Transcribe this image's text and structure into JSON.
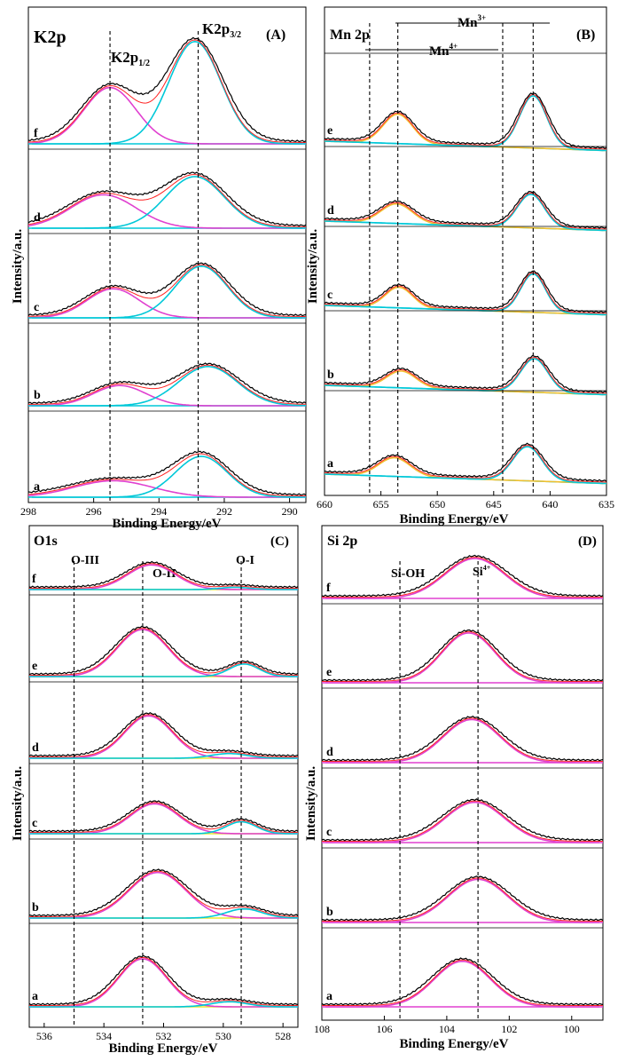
{
  "chart_data": [
    {
      "type": "line",
      "panel_tag": "(A)",
      "title": "K2p",
      "xlabel": "Binding Energy/eV",
      "ylabel": "Intensity/a.u.",
      "xlim": [
        298,
        289.5
      ],
      "xticks": [
        298,
        296,
        294,
        292,
        290
      ],
      "tick_labels": [
        "298",
        "296",
        "294",
        "292",
        "290"
      ],
      "row_labels": [
        "f",
        "d",
        "c",
        "b",
        "a"
      ],
      "annotations": [
        {
          "base": "K2p",
          "sub": "1/2",
          "pos": "top-left"
        },
        {
          "base": "K2p",
          "sub": "3/2",
          "pos": "top-center"
        }
      ],
      "reference_lines": [
        295.5,
        292.8
      ],
      "row_peaks": [
        [
          {
            "c": 295.5,
            "h": 0.55,
            "w": 0.8
          },
          {
            "c": 292.9,
            "h": 1.0,
            "w": 0.8
          }
        ],
        [
          {
            "c": 295.7,
            "h": 0.55,
            "w": 1.0
          },
          {
            "c": 292.9,
            "h": 0.85,
            "w": 0.9
          }
        ],
        [
          {
            "c": 295.4,
            "h": 0.45,
            "w": 0.8
          },
          {
            "c": 292.7,
            "h": 0.8,
            "w": 0.8
          }
        ],
        [
          {
            "c": 295.2,
            "h": 0.32,
            "w": 0.8
          },
          {
            "c": 292.5,
            "h": 0.62,
            "w": 0.9
          }
        ],
        [
          {
            "c": 295.4,
            "h": 0.25,
            "w": 1.2
          },
          {
            "c": 292.7,
            "h": 0.62,
            "w": 0.8
          }
        ]
      ],
      "component_colors": [
        "#e040d0",
        "#00c8d8"
      ]
    },
    {
      "type": "line",
      "panel_tag": "(B)",
      "title": "Mn 2p",
      "xlabel": "Binding Energy/eV",
      "ylabel": "Intensity/a.u.",
      "xlim": [
        660,
        635
      ],
      "xticks": [
        660,
        655,
        650,
        645,
        640,
        635
      ],
      "tick_labels": [
        "660",
        "655",
        "650",
        "645",
        "640",
        "635"
      ],
      "row_labels": [
        "e",
        "d",
        "c",
        "b",
        "a"
      ],
      "annotations": [
        {
          "base": "Mn",
          "sup": "3+",
          "pos": "top"
        },
        {
          "base": "Mn",
          "sup": "4+",
          "pos": "top-left"
        }
      ],
      "reference_lines": [
        656,
        653.5,
        644.2,
        641.5
      ],
      "row_peaks": [
        [
          {
            "c": 653.5,
            "h": 0.45,
            "w": 1.3
          },
          {
            "c": 641.5,
            "h": 0.8,
            "w": 1.2
          }
        ],
        [
          {
            "c": 653.6,
            "h": 0.35,
            "w": 1.4
          },
          {
            "c": 641.7,
            "h": 0.6,
            "w": 1.2
          }
        ],
        [
          {
            "c": 653.4,
            "h": 0.35,
            "w": 1.2
          },
          {
            "c": 641.5,
            "h": 0.65,
            "w": 1.1
          }
        ],
        [
          {
            "c": 653.2,
            "h": 0.3,
            "w": 1.3
          },
          {
            "c": 641.4,
            "h": 0.6,
            "w": 1.2
          }
        ],
        [
          {
            "c": 653.8,
            "h": 0.3,
            "w": 1.4
          },
          {
            "c": 642.0,
            "h": 0.55,
            "w": 1.3
          }
        ]
      ],
      "component_colors": [
        "#f0c030",
        "#00c8d8"
      ]
    },
    {
      "type": "line",
      "panel_tag": "(C)",
      "title": "O1s",
      "xlabel": "Binding Energy/eV",
      "ylabel": "Intensity/a.u.",
      "xlim": [
        536.5,
        527.5
      ],
      "xticks": [
        536,
        534,
        532,
        530,
        528
      ],
      "tick_labels": [
        "536",
        "534",
        "532",
        "530",
        "528"
      ],
      "row_labels": [
        "f",
        "e",
        "d",
        "c",
        "b",
        "a"
      ],
      "annotations": [
        {
          "text": "O-III",
          "pos": "left"
        },
        {
          "text": "O-II",
          "pos": "center"
        },
        {
          "text": "O-I",
          "pos": "right"
        }
      ],
      "reference_lines": [
        535.0,
        532.7,
        529.4
      ],
      "row_peaks": [
        [
          {
            "c": 532.4,
            "h": 0.55,
            "w": 0.8
          },
          {
            "c": 529.6,
            "h": 0.05,
            "w": 0.5
          }
        ],
        [
          {
            "c": 532.7,
            "h": 0.75,
            "w": 0.85
          },
          {
            "c": 529.3,
            "h": 0.2,
            "w": 0.5
          }
        ],
        [
          {
            "c": 532.5,
            "h": 0.72,
            "w": 0.8
          },
          {
            "c": 529.8,
            "h": 0.08,
            "w": 0.6
          }
        ],
        [
          {
            "c": 532.3,
            "h": 0.55,
            "w": 0.8
          },
          {
            "c": 529.4,
            "h": 0.22,
            "w": 0.5
          }
        ],
        [
          {
            "c": 532.2,
            "h": 0.75,
            "w": 0.95
          },
          {
            "c": 529.3,
            "h": 0.15,
            "w": 0.6
          }
        ],
        [
          {
            "c": 532.7,
            "h": 0.75,
            "w": 0.8
          },
          {
            "c": 529.8,
            "h": 0.08,
            "w": 0.6
          }
        ]
      ],
      "component_colors": [
        "#e040d0",
        "#00c8d8"
      ]
    },
    {
      "type": "line",
      "panel_tag": "(D)",
      "title": "Si 2p",
      "xlabel": "Binding Energy/eV",
      "ylabel": "Intensity/a.u.",
      "xlim": [
        108,
        99
      ],
      "xticks": [
        108,
        106,
        104,
        102,
        100
      ],
      "tick_labels": [
        "108",
        "106",
        "104",
        "102",
        "100"
      ],
      "row_labels": [
        "f",
        "e",
        "d",
        "c",
        "b",
        "a"
      ],
      "annotations": [
        {
          "text": "Si-OH",
          "pos": "left"
        },
        {
          "base": "Si",
          "sup": "4+",
          "pos": "center"
        }
      ],
      "reference_lines": [
        105.5,
        103.0
      ],
      "row_peaks": [
        [
          {
            "c": 103.1,
            "h": 0.78,
            "w": 0.95
          }
        ],
        [
          {
            "c": 103.3,
            "h": 0.82,
            "w": 0.85
          }
        ],
        [
          {
            "c": 103.2,
            "h": 0.75,
            "w": 0.9
          }
        ],
        [
          {
            "c": 103.1,
            "h": 0.7,
            "w": 0.95
          }
        ],
        [
          {
            "c": 103.0,
            "h": 0.75,
            "w": 0.95
          }
        ],
        [
          {
            "c": 103.5,
            "h": 0.75,
            "w": 0.9
          }
        ]
      ],
      "component_colors": [
        "#e040d0",
        "#00c8d8"
      ]
    }
  ]
}
